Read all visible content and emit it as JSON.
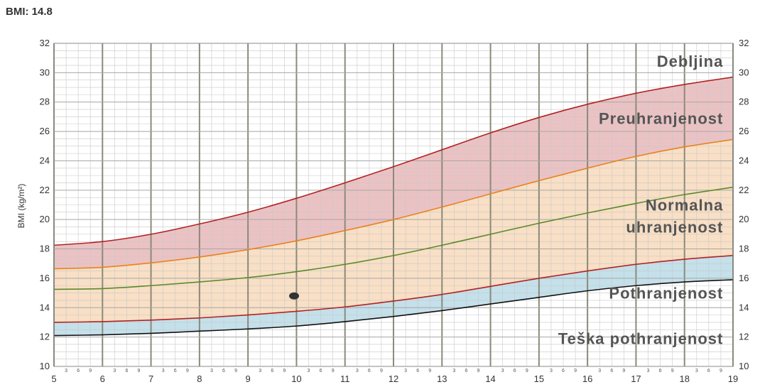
{
  "header": {
    "bmi_label": "BMI: 14.8"
  },
  "chart_data": {
    "type": "line",
    "title": "",
    "xlabel": "",
    "ylabel": "BMI (kg/m²)",
    "xlim": [
      5,
      19
    ],
    "ylim": [
      10,
      32
    ],
    "x_ticks": [
      5,
      6,
      7,
      8,
      9,
      10,
      11,
      12,
      13,
      14,
      15,
      16,
      17,
      18,
      19
    ],
    "y_ticks": [
      10,
      12,
      14,
      16,
      18,
      20,
      22,
      24,
      26,
      28,
      30,
      32
    ],
    "x_sub_ticks": [
      "3",
      "6",
      "9"
    ],
    "grid": true,
    "zones": [
      {
        "label": "Debljina",
        "x": 18.8,
        "y": 30.8
      },
      {
        "label": "Preuhranjenost",
        "x": 18.8,
        "y": 26.9
      },
      {
        "label": "Normalna",
        "x": 18.8,
        "y": 21.0
      },
      {
        "label": "uhranjenost",
        "x": 18.8,
        "y": 19.5
      },
      {
        "label": "Pothranjenost",
        "x": 18.8,
        "y": 15.0
      },
      {
        "label": "Teška pothranjenost",
        "x": 18.8,
        "y": 11.9
      }
    ],
    "x": [
      5,
      6,
      7,
      8,
      9,
      10,
      11,
      12,
      13,
      14,
      15,
      16,
      17,
      18,
      19
    ],
    "series": [
      {
        "values": [
          12.1,
          12.15,
          12.25,
          12.4,
          12.55,
          12.75,
          13.05,
          13.4,
          13.8,
          14.25,
          14.7,
          15.15,
          15.5,
          15.75,
          15.9
        ],
        "color": "#111111"
      },
      {
        "values": [
          13.0,
          13.05,
          13.15,
          13.3,
          13.5,
          13.75,
          14.05,
          14.45,
          14.9,
          15.45,
          16.0,
          16.5,
          16.95,
          17.3,
          17.55
        ],
        "color": "#b22222"
      },
      {
        "values": [
          15.25,
          15.3,
          15.5,
          15.75,
          16.05,
          16.45,
          16.95,
          17.55,
          18.25,
          19.0,
          19.75,
          20.45,
          21.1,
          21.7,
          22.2
        ],
        "color": "#5a8a2a"
      },
      {
        "values": [
          16.65,
          16.75,
          17.05,
          17.45,
          17.95,
          18.55,
          19.25,
          20.0,
          20.85,
          21.75,
          22.65,
          23.5,
          24.3,
          24.95,
          25.45
        ],
        "color": "#e8821e"
      },
      {
        "values": [
          18.25,
          18.5,
          19.0,
          19.7,
          20.5,
          21.45,
          22.5,
          23.6,
          24.75,
          25.9,
          26.95,
          27.85,
          28.6,
          29.2,
          29.7
        ],
        "color": "#b22222"
      }
    ],
    "point": {
      "x": 9.95,
      "y": 14.8
    },
    "colors": {
      "underweight_fill": "#c4e0ea",
      "normal_fill": "#f8dfc5",
      "overweight_fill": "#ebc2c4",
      "grid_major": "#8a8a7a",
      "grid_minor": "#c8c8c8",
      "point": "#333333"
    }
  }
}
